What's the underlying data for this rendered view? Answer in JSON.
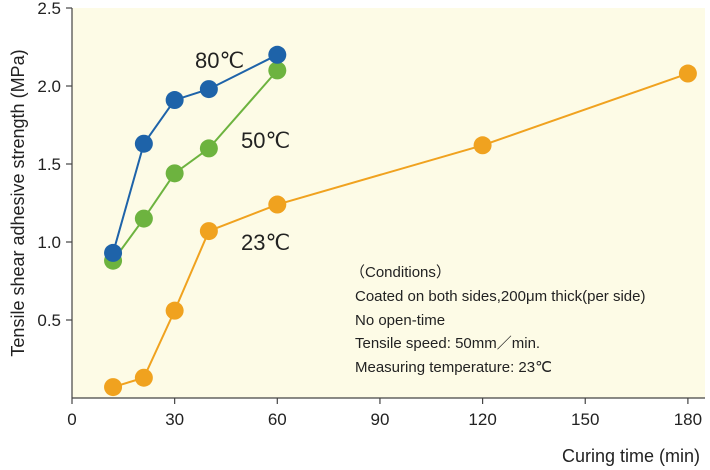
{
  "chart_data": {
    "type": "line",
    "xlabel": "Curing time (min)",
    "ylabel": "Tensile shear adhesive strength (MPa)",
    "xlim": [
      0,
      185
    ],
    "ylim": [
      0,
      2.5
    ],
    "xticks": [
      0,
      30,
      60,
      90,
      120,
      150,
      180
    ],
    "xtick_labels": [
      "0",
      "30",
      "60",
      "90",
      "120",
      "150",
      "180"
    ],
    "yticks": [
      0.5,
      1.0,
      1.5,
      2.0,
      2.5
    ],
    "ytick_labels": [
      "0.5",
      "1.0",
      "1.5",
      "2.0",
      "2.5"
    ],
    "grid": false,
    "series": [
      {
        "name": "80℃",
        "color": "#1e63a9",
        "x": [
          12,
          21,
          30,
          40,
          60
        ],
        "y": [
          0.93,
          1.63,
          1.91,
          1.98,
          2.2
        ]
      },
      {
        "name": "50℃",
        "color": "#6db33f",
        "x": [
          12,
          21,
          30,
          40,
          60
        ],
        "y": [
          0.88,
          1.15,
          1.44,
          1.6,
          2.1
        ]
      },
      {
        "name": "23℃",
        "color": "#f0a21f",
        "x": [
          12,
          21,
          30,
          40,
          60,
          120,
          180
        ],
        "y": [
          0.07,
          0.13,
          0.56,
          1.07,
          1.24,
          1.62,
          2.08
        ]
      }
    ],
    "annotations": [
      "（Conditions）",
      "Coated on both sides,200μm thick(per side)",
      "No open-time",
      "Tensile speed: 50mm／min.",
      "Measuring temperature: 23℃"
    ],
    "background_color": "#fdfbe6"
  }
}
